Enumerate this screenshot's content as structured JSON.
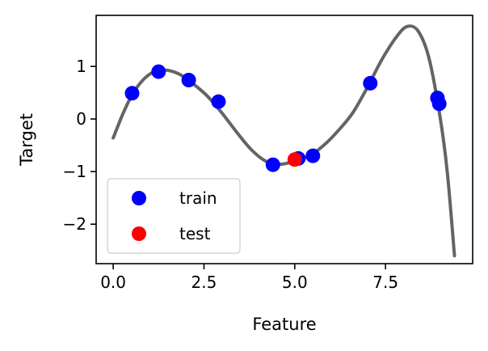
{
  "chart_data": {
    "type": "scatter",
    "xlabel": "Feature",
    "ylabel": "Target",
    "xlim": [
      -0.47,
      9.9
    ],
    "ylim": [
      -2.75,
      1.97
    ],
    "xticks": [
      0.0,
      2.5,
      5.0,
      7.5
    ],
    "xtick_labels": [
      "0.0",
      "2.5",
      "5.0",
      "7.5"
    ],
    "yticks": [
      1,
      0,
      -1,
      -2
    ],
    "ytick_labels": [
      "1",
      "0",
      "−1",
      "−2"
    ],
    "legend": {
      "position": "lower-left",
      "entries": [
        "train",
        "test"
      ]
    },
    "grid": false,
    "colors": {
      "train": "#0000ff",
      "test": "#ff0000",
      "curve": "#646464"
    },
    "series": [
      {
        "name": "train",
        "points": [
          {
            "x": 0.52,
            "y": 0.49
          },
          {
            "x": 1.25,
            "y": 0.9
          },
          {
            "x": 2.08,
            "y": 0.74
          },
          {
            "x": 2.9,
            "y": 0.33
          },
          {
            "x": 4.4,
            "y": -0.87
          },
          {
            "x": 5.1,
            "y": -0.75
          },
          {
            "x": 5.5,
            "y": -0.7
          },
          {
            "x": 7.08,
            "y": 0.68
          },
          {
            "x": 8.93,
            "y": 0.4
          },
          {
            "x": 8.98,
            "y": 0.29
          }
        ]
      },
      {
        "name": "test",
        "points": [
          {
            "x": 5.0,
            "y": -0.77
          }
        ]
      }
    ],
    "curve": [
      {
        "x": 0.0,
        "y": -0.36
      },
      {
        "x": 0.3,
        "y": 0.15
      },
      {
        "x": 0.6,
        "y": 0.55
      },
      {
        "x": 1.0,
        "y": 0.85
      },
      {
        "x": 1.4,
        "y": 0.93
      },
      {
        "x": 1.8,
        "y": 0.86
      },
      {
        "x": 2.2,
        "y": 0.67
      },
      {
        "x": 2.6,
        "y": 0.43
      },
      {
        "x": 3.0,
        "y": 0.11
      },
      {
        "x": 3.4,
        "y": -0.25
      },
      {
        "x": 3.8,
        "y": -0.58
      },
      {
        "x": 4.2,
        "y": -0.8
      },
      {
        "x": 4.6,
        "y": -0.86
      },
      {
        "x": 5.0,
        "y": -0.8
      },
      {
        "x": 5.4,
        "y": -0.7
      },
      {
        "x": 5.8,
        "y": -0.5
      },
      {
        "x": 6.2,
        "y": -0.22
      },
      {
        "x": 6.6,
        "y": 0.12
      },
      {
        "x": 7.0,
        "y": 0.6
      },
      {
        "x": 7.4,
        "y": 1.13
      },
      {
        "x": 7.8,
        "y": 1.56
      },
      {
        "x": 8.1,
        "y": 1.76
      },
      {
        "x": 8.4,
        "y": 1.67
      },
      {
        "x": 8.7,
        "y": 1.15
      },
      {
        "x": 9.0,
        "y": 0.05
      },
      {
        "x": 9.2,
        "y": -1.0
      },
      {
        "x": 9.4,
        "y": -2.6
      }
    ]
  }
}
